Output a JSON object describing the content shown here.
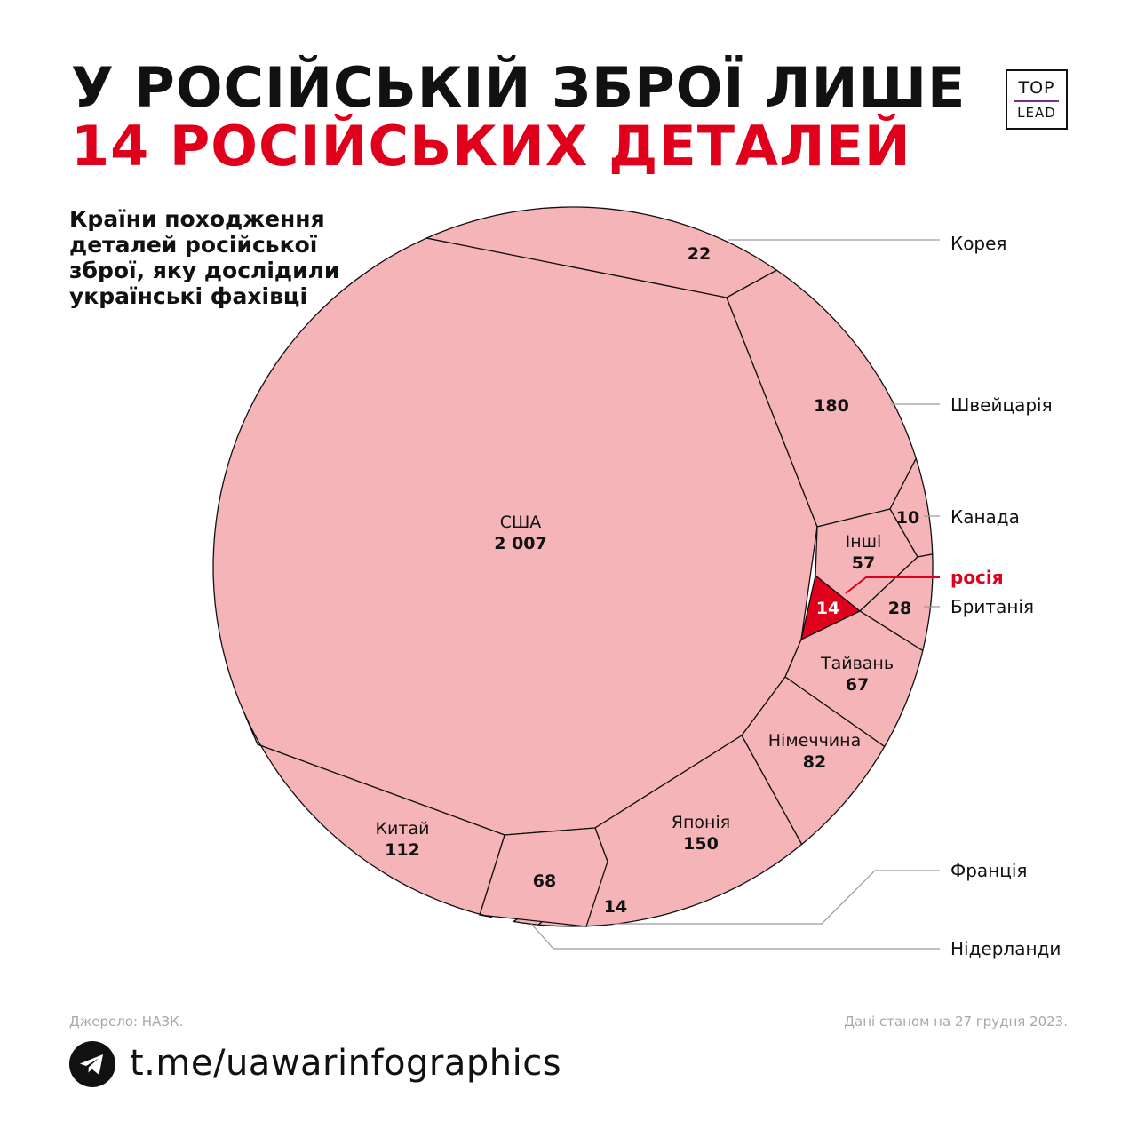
{
  "header": {
    "title_line1": "У РОСІЙСЬКІЙ ЗБРОЇ ЛИШЕ",
    "title_line2": "14 РОСІЙСЬКИХ ДЕТАЛЕЙ",
    "logo_top": "TOP",
    "logo_bottom": "LEAD"
  },
  "subtitle": "Країни походження деталей російської зброї, яку дослідили українські фахівці",
  "colors": {
    "cell": "#f5b4b8",
    "highlight": "#e0001b",
    "accent_red": "#e0001b",
    "logo_bar": "#7a2d8c"
  },
  "chart_data": {
    "type": "voronoi-treemap",
    "unit": "деталей",
    "cells": [
      {
        "name": "США",
        "value": 2007,
        "value_label": "2 007"
      },
      {
        "name": "Корея",
        "value": 22,
        "value_label": "22"
      },
      {
        "name": "Швейцарія",
        "value": 180,
        "value_label": "180"
      },
      {
        "name": "Канада",
        "value": 10,
        "value_label": "10"
      },
      {
        "name": "Інші",
        "value": 57,
        "value_label": "57"
      },
      {
        "name": "росія",
        "value": 14,
        "value_label": "14",
        "highlight": true
      },
      {
        "name": "Британія",
        "value": 28,
        "value_label": "28"
      },
      {
        "name": "Тайвань",
        "value": 67,
        "value_label": "67"
      },
      {
        "name": "Німеччина",
        "value": 82,
        "value_label": "82"
      },
      {
        "name": "Японія",
        "value": 150,
        "value_label": "150"
      },
      {
        "name": "Франція",
        "value": 14,
        "value_label": "14"
      },
      {
        "name": "Нідерланди",
        "value": 68,
        "value_label": "68"
      },
      {
        "name": "Китай",
        "value": 112,
        "value_label": "112"
      }
    ]
  },
  "footer": {
    "source": "Джерело: НАЗК.",
    "date": "Дані станом на 27 грудня 2023.",
    "link": "t.me/uawarinfographics",
    "icon": "telegram-icon"
  }
}
